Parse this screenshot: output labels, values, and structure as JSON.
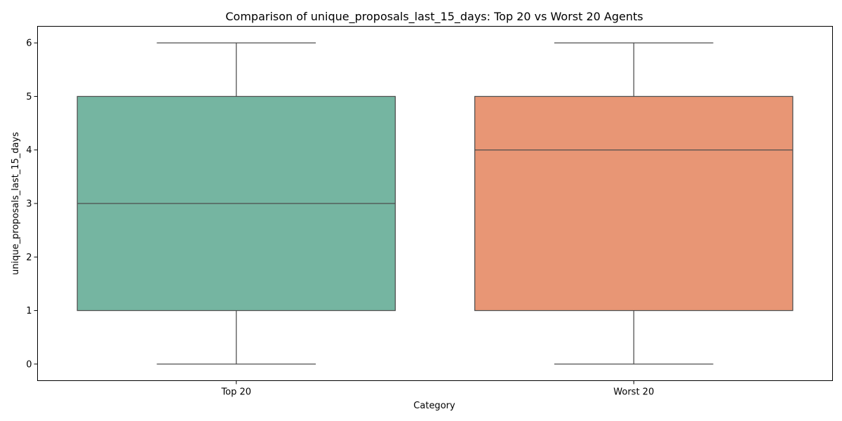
{
  "chart_data": {
    "type": "box",
    "title": "Comparison of unique_proposals_last_15_days: Top 20 vs Worst 20 Agents",
    "xlabel": "Category",
    "ylabel": "unique_proposals_last_15_days",
    "ylim": [
      -0.31,
      6.31
    ],
    "yticks": [
      0,
      1,
      2,
      3,
      4,
      5,
      6
    ],
    "grid": false,
    "categories": [
      "Top 20",
      "Worst 20"
    ],
    "boxes": [
      {
        "category": "Top 20",
        "whisker_low": 0,
        "q1": 1,
        "median": 3,
        "q3": 5,
        "whisker_high": 6,
        "color": "#75b5a1"
      },
      {
        "category": "Worst 20",
        "whisker_low": 0,
        "q1": 1,
        "median": 4,
        "q3": 5,
        "whisker_high": 6,
        "color": "#e89675"
      }
    ],
    "line_color": "#4d4d4d"
  }
}
